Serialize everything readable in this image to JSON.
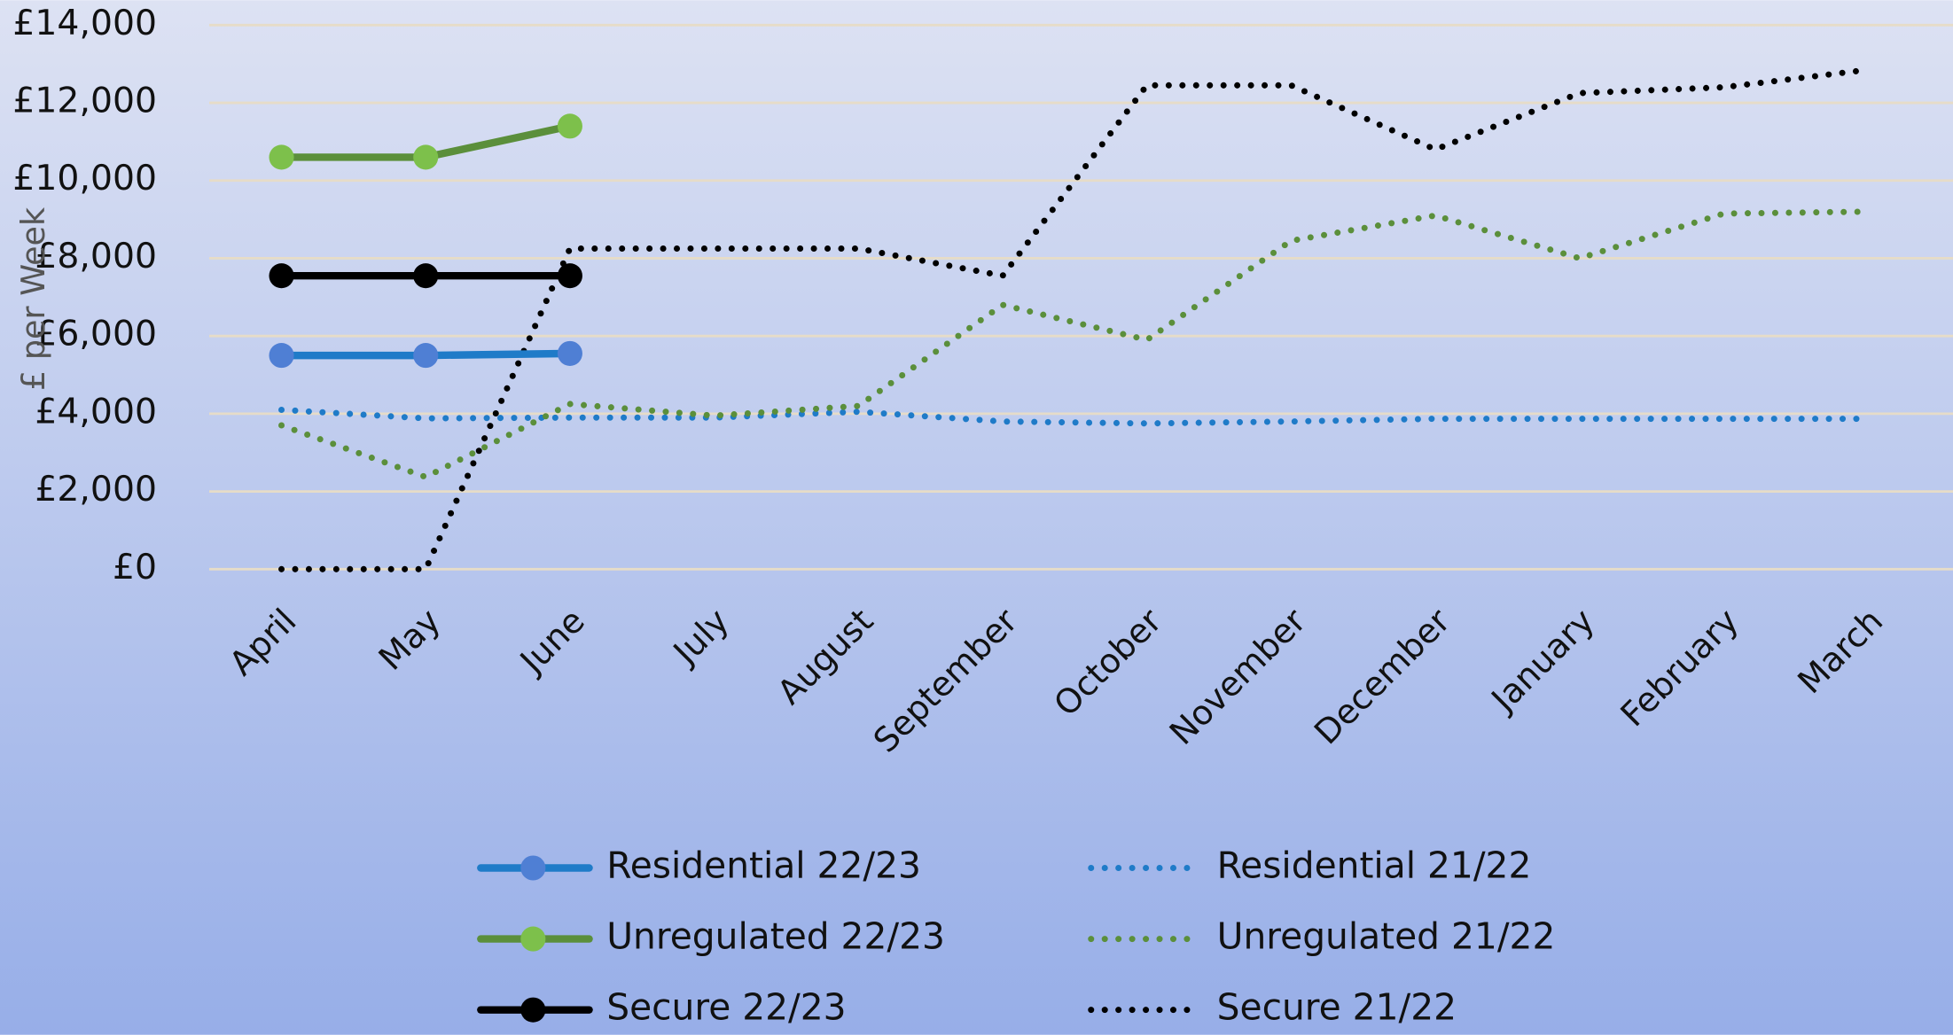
{
  "chart_data": {
    "type": "line",
    "y_label": "£ per Week",
    "categories": [
      "April",
      "May",
      "June",
      "July",
      "August",
      "September",
      "October",
      "November",
      "December",
      "January",
      "February",
      "March"
    ],
    "ylim": [
      0,
      14000
    ],
    "yticks": [
      {
        "value": 0,
        "label": "£0"
      },
      {
        "value": 2000,
        "label": "£2,000"
      },
      {
        "value": 4000,
        "label": "£4,000"
      },
      {
        "value": 6000,
        "label": "£6,000"
      },
      {
        "value": 8000,
        "label": "£8,000"
      },
      {
        "value": 10000,
        "label": "£10,000"
      },
      {
        "value": 12000,
        "label": "£12,000"
      },
      {
        "value": 14000,
        "label": "£14,000"
      }
    ],
    "grid": true,
    "series": [
      {
        "name": "Residential 22/23",
        "color": "#1f7bc8",
        "marker_color": "#4f7fd4",
        "line_style": "solid",
        "markers": true,
        "values": [
          5500,
          5500,
          5550,
          null,
          null,
          null,
          null,
          null,
          null,
          null,
          null,
          null
        ]
      },
      {
        "name": "Residential 21/22",
        "color": "#1f7bc8",
        "line_style": "dotted",
        "markers": false,
        "values": [
          4100,
          3880,
          3900,
          3900,
          4050,
          3800,
          3750,
          3800,
          3870,
          3870,
          3870,
          3870
        ]
      },
      {
        "name": "Unregulated 22/23",
        "color": "#5b8f3b",
        "marker_color": "#7dc04b",
        "line_style": "solid",
        "markers": true,
        "values": [
          10600,
          10600,
          11400,
          null,
          null,
          null,
          null,
          null,
          null,
          null,
          null,
          null
        ]
      },
      {
        "name": "Unregulated 21/22",
        "color": "#5b8f3b",
        "line_style": "dotted",
        "markers": false,
        "values": [
          3700,
          2370,
          4250,
          3950,
          4200,
          6800,
          5900,
          8450,
          9100,
          8000,
          9150,
          9200
        ]
      },
      {
        "name": "Secure 22/23",
        "color": "#000000",
        "marker_color": "#000000",
        "line_style": "solid",
        "markers": true,
        "values": [
          7550,
          7550,
          7550,
          null,
          null,
          null,
          null,
          null,
          null,
          null,
          null,
          null
        ]
      },
      {
        "name": "Secure 21/22",
        "color": "#000000",
        "line_style": "dotted",
        "markers": false,
        "values": [
          0,
          0,
          8250,
          8250,
          8250,
          7550,
          12450,
          12450,
          10800,
          12250,
          12400,
          12850
        ]
      }
    ]
  }
}
